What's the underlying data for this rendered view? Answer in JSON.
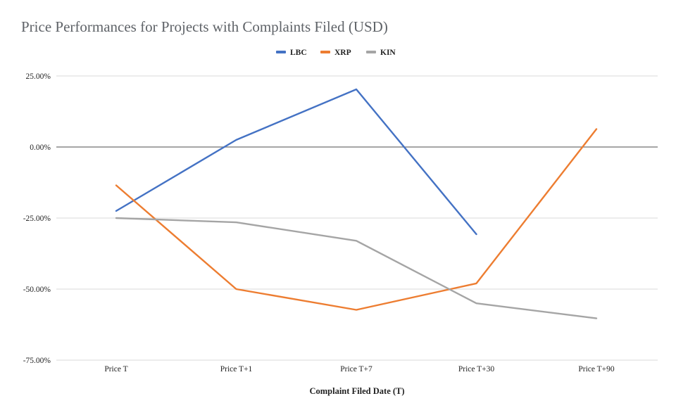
{
  "chart_data": {
    "type": "line",
    "title": "Price Performances for Projects with Complaints Filed (USD)",
    "xlabel": "Complaint Filed Date (T)",
    "ylabel": "",
    "categories": [
      "Price T",
      "Price T+1",
      "Price T+7",
      "Price T+30",
      "Price T+90"
    ],
    "ylim": [
      -75,
      25
    ],
    "yticks": [
      25,
      0,
      -25,
      -50,
      -75
    ],
    "ytick_labels": [
      "25.00%",
      "0.00%",
      "-25.00%",
      "-50.00%",
      "-75.00%"
    ],
    "grid": true,
    "legend_position": "top-center",
    "series": [
      {
        "name": "LBC",
        "color": "#4472c4",
        "values": [
          -22.5,
          2.5,
          20.3,
          -30.7,
          null
        ]
      },
      {
        "name": "XRP",
        "color": "#ed7d31",
        "values": [
          -13.5,
          -50.0,
          -57.3,
          -48.0,
          6.3
        ]
      },
      {
        "name": "KIN",
        "color": "#a5a5a5",
        "values": [
          -25.0,
          -26.5,
          -33.0,
          -55.0,
          -60.3
        ]
      }
    ]
  }
}
